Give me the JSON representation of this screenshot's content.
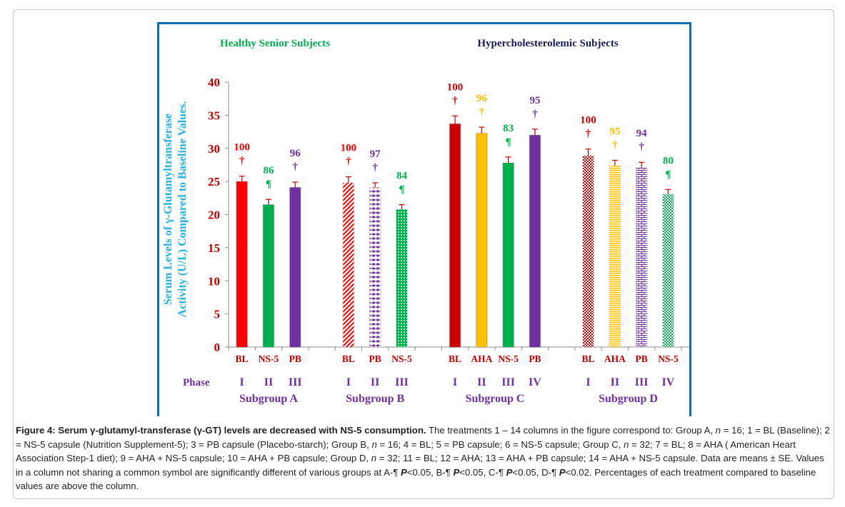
{
  "chart_data": {
    "type": "bar",
    "header_left": "Healthy Senior  Subjects",
    "header_right": "Hypercholesterolemic Subjects",
    "ylabel_line1": "Serum Levels of γ-Glutamyltransferase",
    "ylabel_line2": "Activity (U/L) Compared to Baseline Values.",
    "ylim": [
      0,
      40
    ],
    "yticks": [
      "0",
      "5",
      "10",
      "15",
      "20",
      "25",
      "30",
      "35",
      "40"
    ],
    "phase_label": "Phase",
    "grid": false,
    "groups": [
      {
        "name": "Subgroup A",
        "bars": [
          {
            "label": "BL",
            "phase": "I",
            "value": 25.0,
            "error": 0.8,
            "percent": "100",
            "symbol": "†",
            "color": "#ff0000",
            "pattern": "solid"
          },
          {
            "label": "NS-5",
            "phase": "II",
            "value": 21.5,
            "error": 0.8,
            "percent": "86",
            "symbol": "¶",
            "color": "#00b050",
            "pattern": "solid"
          },
          {
            "label": "PB",
            "phase": "III",
            "value": 24.1,
            "error": 0.8,
            "percent": "96",
            "symbol": "†",
            "color": "#7030a0",
            "pattern": "solid"
          }
        ]
      },
      {
        "name": "Subgroup B",
        "bars": [
          {
            "label": "BL",
            "phase": "I",
            "value": 24.8,
            "error": 0.9,
            "percent": "100",
            "symbol": "†",
            "color": "#ff0000",
            "pattern": "diagonal"
          },
          {
            "label": "PB",
            "phase": "II",
            "value": 24.1,
            "error": 0.7,
            "percent": "97",
            "symbol": "†",
            "color": "#7030a0",
            "pattern": "dots"
          },
          {
            "label": "NS-5",
            "phase": "III",
            "value": 20.8,
            "error": 0.7,
            "percent": "84",
            "symbol": "¶",
            "color": "#00b050",
            "pattern": "grid"
          }
        ]
      },
      {
        "name": "Subgroup C",
        "bars": [
          {
            "label": "BL",
            "phase": "I",
            "value": 33.7,
            "error": 1.2,
            "percent": "100",
            "symbol": "†",
            "color": "#cc0000",
            "pattern": "solid"
          },
          {
            "label": "AHA",
            "phase": "II",
            "value": 32.3,
            "error": 0.9,
            "percent": "96",
            "symbol": "†",
            "color": "#ffc000",
            "pattern": "solid"
          },
          {
            "label": "NS-5",
            "phase": "III",
            "value": 27.8,
            "error": 0.9,
            "percent": "83",
            "symbol": "¶",
            "color": "#00b050",
            "pattern": "solid"
          },
          {
            "label": "PB",
            "phase": "IV",
            "value": 32.0,
            "error": 0.9,
            "percent": "95",
            "symbol": "†",
            "color": "#7030a0",
            "pattern": "solid"
          }
        ]
      },
      {
        "name": "Subgroup D",
        "bars": [
          {
            "label": "BL",
            "phase": "I",
            "value": 28.9,
            "error": 1.0,
            "percent": "100",
            "symbol": "†",
            "color": "#cc0000",
            "pattern": "checker"
          },
          {
            "label": "AHA",
            "phase": "II",
            "value": 27.4,
            "error": 0.8,
            "percent": "95",
            "symbol": "†",
            "color": "#ffc000",
            "pattern": "hlines"
          },
          {
            "label": "PB",
            "phase": "III",
            "value": 27.1,
            "error": 0.8,
            "percent": "94",
            "symbol": "†",
            "color": "#7030a0",
            "pattern": "brick"
          },
          {
            "label": "NS-5",
            "phase": "IV",
            "value": 23.1,
            "error": 0.7,
            "percent": "80",
            "symbol": "¶",
            "color": "#00b050",
            "pattern": "checker"
          }
        ]
      }
    ]
  },
  "colors": {
    "frame": "#0b6fb8",
    "ylabel": "#1fb2e6",
    "ytick": "#c00000",
    "category": "#c00000",
    "phase": "#7030a0",
    "header_left": "#00b050",
    "header_right": "#1a1a5e"
  },
  "caption": {
    "bold": "Figure 4: Serum γ-glutamyl-transferase (γ-GT) levels are decreased with NS-5 consumption.",
    "t1": " The treatments 1 – 14 columns in the figure correspond to: Group A, ",
    "n": "n",
    "t2": " = 16; 1 = BL (Baseline); 2 = NS-5 capsule (Nutrition Supplement-5); 3 = PB capsule (Placebo-starch); Group B, ",
    "t3": " = 16; 4 = BL; 5 = PB capsule; 6 = NS-5 capsule; Group C, ",
    "t4": " = 32; 7 = BL; 8 = AHA ( American Heart Association Step-1 diet); 9 = AHA + NS-5 capsule; 10 = AHA + PB capsule; Group D, ",
    "t5": " = 32; 11 = BL; 12 = AHA; 13 = AHA + PB capsule; 14 = AHA + NS-5 capsule. Data are means ± SE. Values in a column not sharing a common symbol are significantly different of various groups at A-¶ ",
    "P": "P",
    "t6": "<0.05, B-¶ ",
    "t7": "<0.05, C-¶ ",
    "t8": "<0.05, D-¶ ",
    "t9": "<0.02. Percentages of each treatment compared to baseline values are above the column."
  }
}
